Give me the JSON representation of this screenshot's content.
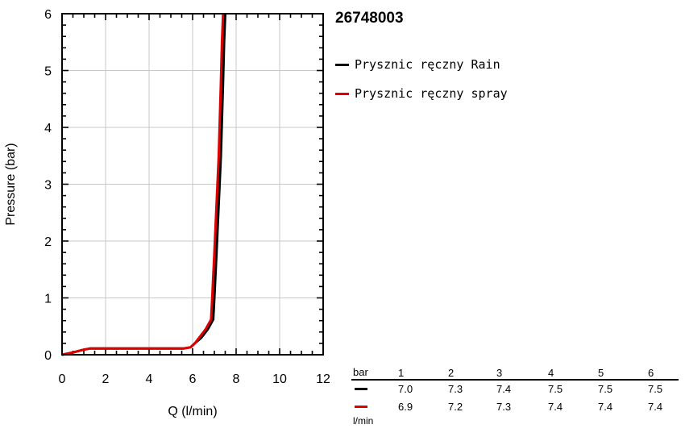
{
  "chart_data": {
    "type": "line",
    "title": "26748003",
    "xlabel": "Q (l/min)",
    "ylabel": "Pressure (bar)",
    "xlim": [
      0,
      12
    ],
    "ylim": [
      0,
      6
    ],
    "xticks": [
      0,
      2,
      4,
      6,
      8,
      10,
      12
    ],
    "yticks": [
      0,
      1,
      2,
      3,
      4,
      5,
      6
    ],
    "grid": true,
    "legend_position": "right",
    "series": [
      {
        "name": "Prysznic ręczny Rain",
        "color": "#000000",
        "x": [
          0,
          0.5,
          1.0,
          1.3,
          2.5,
          4.0,
          5.6,
          5.9,
          6.1,
          6.4,
          6.7,
          6.95,
          7.0,
          7.1,
          7.3,
          7.4,
          7.45,
          7.5
        ],
        "y": [
          0,
          0.04,
          0.09,
          0.11,
          0.11,
          0.11,
          0.11,
          0.13,
          0.2,
          0.3,
          0.45,
          0.62,
          1.0,
          1.8,
          3.5,
          4.8,
          5.5,
          6.0
        ]
      },
      {
        "name": "Prysznic ręczny spray",
        "color": "#e00000",
        "x": [
          0,
          0.5,
          1.0,
          1.3,
          2.5,
          4.0,
          5.6,
          5.9,
          6.1,
          6.3,
          6.6,
          6.85,
          6.9,
          7.0,
          7.2,
          7.3,
          7.35,
          7.4
        ],
        "y": [
          0,
          0.04,
          0.09,
          0.11,
          0.11,
          0.11,
          0.11,
          0.13,
          0.2,
          0.3,
          0.45,
          0.62,
          1.0,
          1.8,
          3.5,
          4.8,
          5.5,
          6.0
        ]
      }
    ]
  },
  "flow_table": {
    "pressure_unit": "bar",
    "flow_unit": "l/min",
    "pressures": [
      "1",
      "2",
      "3",
      "4",
      "5",
      "6"
    ],
    "rows": [
      {
        "color": "#000000",
        "values": [
          "7.0",
          "7.3",
          "7.4",
          "7.5",
          "7.5",
          "7.5"
        ]
      },
      {
        "color": "#e00000",
        "values": [
          "6.9",
          "7.2",
          "7.3",
          "7.4",
          "7.4",
          "7.4"
        ]
      }
    ]
  }
}
